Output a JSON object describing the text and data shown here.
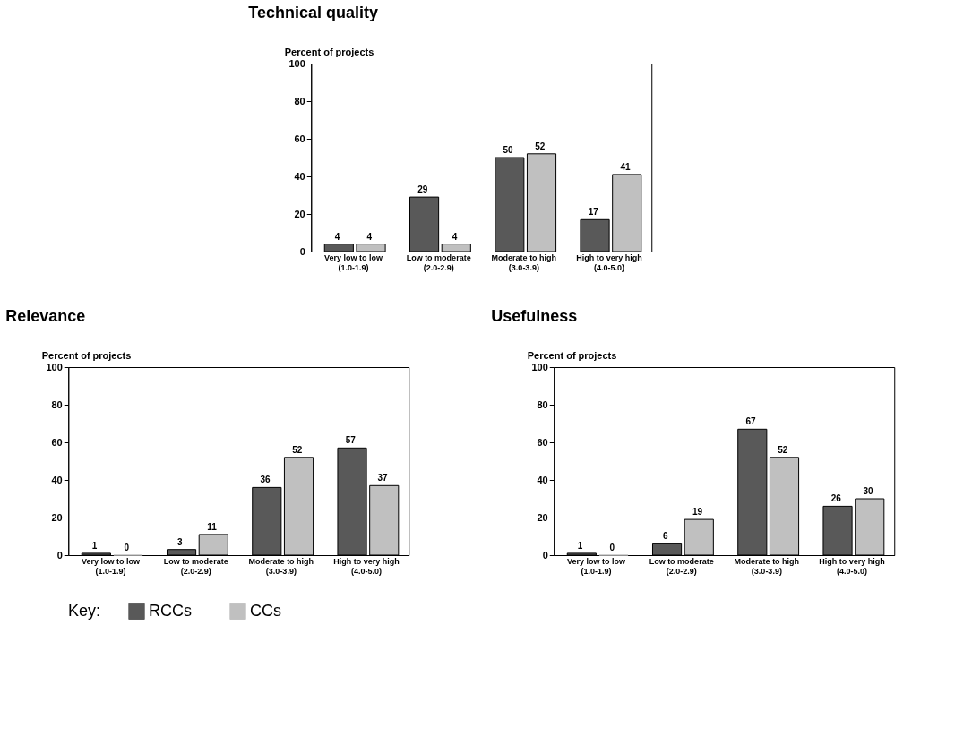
{
  "chart_data": [
    {
      "type": "bar",
      "title": "Technical quality",
      "ylabel": "Percent of projects",
      "categories": [
        "Very low to low\n(1.0-1.9)",
        "Low to moderate\n(2.0-2.9)",
        "Moderate to high\n(3.0-3.9)",
        "High to very high\n(4.0-5.0)"
      ],
      "series": [
        {
          "name": "RCCs",
          "color": "#595959",
          "values": [
            4,
            29,
            50,
            17
          ]
        },
        {
          "name": "CCs",
          "color": "#c0c0c0",
          "values": [
            4,
            4,
            52,
            41
          ]
        }
      ],
      "ylim": [
        0,
        100
      ],
      "yticks": [
        0,
        20,
        40,
        60,
        80,
        100
      ],
      "grid": false,
      "data_labels": true,
      "legend": "bottom",
      "legend_title": "Key:"
    },
    {
      "type": "bar",
      "title": "Relevance",
      "ylabel": "Percent of projects",
      "categories": [
        "Very low to low\n(1.0-1.9)",
        "Low to moderate\n(2.0-2.9)",
        "Moderate to high\n(3.0-3.9)",
        "High to very high\n(4.0-5.0)"
      ],
      "series": [
        {
          "name": "RCCs",
          "color": "#595959",
          "values": [
            1,
            3,
            36,
            57
          ]
        },
        {
          "name": "CCs",
          "color": "#c0c0c0",
          "values": [
            0,
            11,
            52,
            37
          ]
        }
      ],
      "ylim": [
        0,
        100
      ],
      "yticks": [
        0,
        20,
        40,
        60,
        80,
        100
      ],
      "grid": false,
      "data_labels": true
    },
    {
      "type": "bar",
      "title": "Usefulness",
      "ylabel": "Percent of projects",
      "categories": [
        "Very low to low\n(1.0-1.9)",
        "Low to moderate\n(2.0-2.9)",
        "Moderate to high\n(3.0-3.9)",
        "High to very high\n(4.0-5.0)"
      ],
      "series": [
        {
          "name": "RCCs",
          "color": "#595959",
          "values": [
            1,
            6,
            67,
            26
          ]
        },
        {
          "name": "CCs",
          "color": "#c0c0c0",
          "values": [
            0,
            19,
            52,
            30
          ]
        }
      ],
      "ylim": [
        0,
        100
      ],
      "yticks": [
        0,
        20,
        40,
        60,
        80,
        100
      ],
      "grid": false,
      "data_labels": true
    }
  ]
}
